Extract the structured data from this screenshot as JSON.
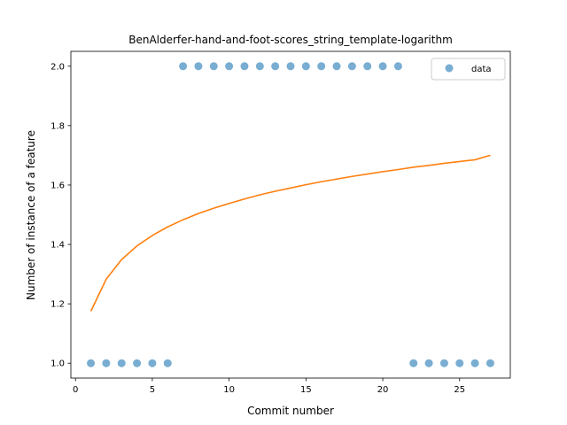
{
  "chart_data": {
    "type": "scatter",
    "title": "BenAlderfer-hand-and-foot-scores_string_template-logarithm",
    "xlabel": "Commit number",
    "ylabel": "Number of instance of a feature",
    "xlim": [
      -0.3,
      28.3
    ],
    "ylim": [
      0.95,
      2.05
    ],
    "xticks": [
      0,
      5,
      10,
      15,
      20,
      25
    ],
    "yticks": [
      1.0,
      1.2,
      1.4,
      1.6,
      1.8,
      2.0
    ],
    "xtick_labels": [
      "0",
      "5",
      "10",
      "15",
      "20",
      "25"
    ],
    "ytick_labels": [
      "1.0",
      "1.2",
      "1.4",
      "1.6",
      "1.8",
      "2.0"
    ],
    "grid": false,
    "legend_position": "top-right",
    "legend_label": "data",
    "series": [
      {
        "name": "data",
        "kind": "scatter",
        "color": "#1f77b4",
        "x": [
          1,
          2,
          3,
          4,
          5,
          6,
          7,
          8,
          9,
          10,
          11,
          12,
          13,
          14,
          15,
          16,
          17,
          18,
          19,
          20,
          21,
          22,
          23,
          24,
          25,
          26,
          27
        ],
        "y": [
          1,
          1,
          1,
          1,
          1,
          1,
          2,
          2,
          2,
          2,
          2,
          2,
          2,
          2,
          2,
          2,
          2,
          2,
          2,
          2,
          2,
          1,
          1,
          1,
          1,
          1,
          1
        ]
      },
      {
        "kind": "line",
        "color": "#ff7f0e",
        "x": [
          1,
          2,
          3,
          4,
          5,
          6,
          7,
          8,
          9,
          10,
          11,
          12,
          13,
          14,
          15,
          16,
          17,
          18,
          19,
          20,
          21,
          22,
          23,
          24,
          25,
          26,
          27
        ],
        "y": [
          1.175,
          1.283,
          1.349,
          1.395,
          1.43,
          1.459,
          1.483,
          1.504,
          1.522,
          1.538,
          1.553,
          1.567,
          1.579,
          1.59,
          1.601,
          1.611,
          1.62,
          1.629,
          1.637,
          1.645,
          1.652,
          1.66,
          1.666,
          1.673,
          1.679,
          1.685,
          1.7
        ]
      }
    ]
  }
}
